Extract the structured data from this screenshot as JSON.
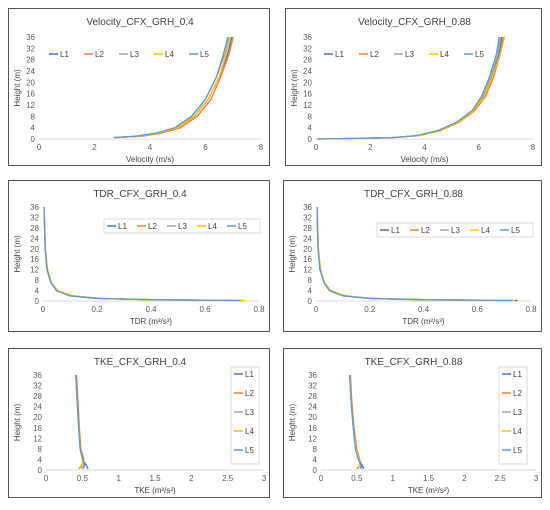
{
  "colors": {
    "L1": "#4472C4",
    "L2": "#ED7D31",
    "L3": "#A5A5A5",
    "L4": "#FFC000",
    "L5": "#5B9BD5"
  },
  "chart_data": [
    {
      "type": "line",
      "title": "Velocity_CFX_GRH_0.4",
      "xlabel": "Velocity (m/s)",
      "ylabel": "Height (m)",
      "xlim": [
        0,
        8
      ],
      "ylim": [
        0,
        36
      ],
      "xticks": [
        "0",
        "2",
        "4",
        "6",
        "8"
      ],
      "yticks": [
        "0",
        "4",
        "8",
        "12",
        "16",
        "20",
        "24",
        "28",
        "32",
        "36"
      ],
      "legend_position": "top-left, horizontal",
      "series": [
        {
          "name": "L1",
          "x": [
            2.7,
            3.6,
            4.3,
            5.0,
            5.6,
            6.1,
            6.5,
            6.8,
            6.95
          ],
          "y": [
            0.5,
            1,
            2,
            4,
            8,
            14,
            22,
            30,
            36
          ]
        },
        {
          "name": "L2",
          "x": [
            2.8,
            3.7,
            4.4,
            5.1,
            5.7,
            6.2,
            6.55,
            6.85,
            7.0
          ],
          "y": [
            0.5,
            1,
            2,
            4,
            8,
            14,
            22,
            30,
            36
          ]
        },
        {
          "name": "L3",
          "x": [
            2.7,
            3.5,
            4.2,
            4.9,
            5.5,
            6.0,
            6.4,
            6.7,
            6.85
          ],
          "y": [
            0.5,
            1,
            2,
            4,
            8,
            14,
            22,
            30,
            36
          ]
        },
        {
          "name": "L4",
          "x": [
            2.8,
            3.6,
            4.3,
            5.0,
            5.6,
            6.1,
            6.5,
            6.75,
            6.9
          ],
          "y": [
            0.5,
            1,
            2,
            4,
            8,
            14,
            22,
            30,
            36
          ]
        },
        {
          "name": "L5",
          "x": [
            2.7,
            3.5,
            4.2,
            4.9,
            5.5,
            6.0,
            6.4,
            6.65,
            6.8
          ],
          "y": [
            0.5,
            1,
            2,
            4,
            8,
            14,
            22,
            30,
            36
          ]
        }
      ]
    },
    {
      "type": "line",
      "title": "Velocity_CFX_GRH_0.88",
      "xlabel": "Velocity (m/s)",
      "ylabel": "Height (m)",
      "xlim": [
        0,
        8
      ],
      "ylim": [
        0,
        36
      ],
      "xticks": [
        "0",
        "2",
        "4",
        "6",
        "8"
      ],
      "yticks": [
        "0",
        "4",
        "8",
        "12",
        "16",
        "20",
        "24",
        "28",
        "32",
        "36"
      ],
      "legend_position": "top-left, horizontal",
      "series": [
        {
          "name": "L1",
          "x": [
            0.05,
            1.5,
            2.8,
            3.8,
            4.6,
            5.3,
            5.8,
            6.2,
            6.5,
            6.75,
            6.85
          ],
          "y": [
            0,
            0.2,
            0.5,
            1.2,
            3,
            6,
            10,
            15,
            22,
            30,
            36
          ]
        },
        {
          "name": "L2",
          "x": [
            0.05,
            1.5,
            2.8,
            3.8,
            4.6,
            5.3,
            5.85,
            6.25,
            6.55,
            6.8,
            6.9
          ],
          "y": [
            0,
            0.2,
            0.5,
            1.2,
            3,
            6,
            10,
            15,
            22,
            30,
            36
          ]
        },
        {
          "name": "L3",
          "x": [
            0.05,
            1.5,
            2.8,
            3.7,
            4.5,
            5.2,
            5.75,
            6.15,
            6.45,
            6.7,
            6.8
          ],
          "y": [
            0,
            0.2,
            0.5,
            1.2,
            3,
            6,
            10,
            15,
            22,
            30,
            36
          ]
        },
        {
          "name": "L4",
          "x": [
            0.05,
            1.5,
            2.8,
            3.8,
            4.6,
            5.3,
            5.8,
            6.2,
            6.5,
            6.8,
            6.95
          ],
          "y": [
            0,
            0.2,
            0.5,
            1.2,
            3,
            6,
            10,
            15,
            22,
            30,
            36
          ]
        },
        {
          "name": "L5",
          "x": [
            0.05,
            1.5,
            2.8,
            3.7,
            4.5,
            5.2,
            5.75,
            6.1,
            6.4,
            6.65,
            6.75
          ],
          "y": [
            0,
            0.2,
            0.5,
            1.2,
            3,
            6,
            10,
            15,
            22,
            30,
            36
          ]
        }
      ]
    },
    {
      "type": "line",
      "title": "TDR_CFX_GRH_0.4",
      "xlabel": "TDR (m²/s³)",
      "ylabel": "Height (m)",
      "xlim": [
        0,
        0.8
      ],
      "ylim": [
        0,
        36
      ],
      "xticks": [
        "0",
        "0.2",
        "0.4",
        "0.6",
        "0.8"
      ],
      "yticks": [
        "0",
        "4",
        "8",
        "12",
        "16",
        "20",
        "24",
        "28",
        "32",
        "36"
      ],
      "legend_position": "inside, horizontal",
      "series": [
        {
          "name": "L1",
          "x": [
            0.74,
            0.4,
            0.2,
            0.1,
            0.05,
            0.03,
            0.015,
            0.008,
            0.005,
            0.004
          ],
          "y": [
            0.2,
            0.5,
            1,
            2,
            4,
            7,
            12,
            20,
            30,
            36
          ]
        },
        {
          "name": "L2",
          "x": [
            0.72,
            0.39,
            0.2,
            0.1,
            0.052,
            0.03,
            0.016,
            0.009,
            0.006,
            0.004
          ],
          "y": [
            0.2,
            0.5,
            1,
            2,
            4,
            7,
            12,
            20,
            30,
            36
          ]
        },
        {
          "name": "L3",
          "x": [
            0.7,
            0.38,
            0.19,
            0.1,
            0.05,
            0.03,
            0.015,
            0.008,
            0.005,
            0.004
          ],
          "y": [
            0.2,
            0.5,
            1,
            2,
            4,
            7,
            12,
            20,
            30,
            36
          ]
        },
        {
          "name": "L4",
          "x": [
            0.75,
            0.42,
            0.22,
            0.11,
            0.055,
            0.032,
            0.017,
            0.009,
            0.006,
            0.004
          ],
          "y": [
            0.2,
            0.5,
            1,
            2,
            4,
            7,
            12,
            20,
            30,
            36
          ]
        },
        {
          "name": "L5",
          "x": [
            0.73,
            0.4,
            0.2,
            0.1,
            0.05,
            0.03,
            0.015,
            0.008,
            0.005,
            0.004
          ],
          "y": [
            0.2,
            0.5,
            1,
            2,
            4,
            7,
            12,
            20,
            30,
            36
          ]
        }
      ]
    },
    {
      "type": "line",
      "title": "TDR_CFX_GRH_0.88",
      "xlabel": "TDR (m²/s³)",
      "ylabel": "Height (m)",
      "xlim": [
        0,
        0.8
      ],
      "ylim": [
        0,
        36
      ],
      "xticks": [
        "0",
        "0.2",
        "0.4",
        "0.6",
        "0.8"
      ],
      "yticks": [
        "0",
        "4",
        "8",
        "12",
        "16",
        "20",
        "24",
        "28",
        "32",
        "36"
      ],
      "legend_position": "inside, horizontal",
      "series": [
        {
          "name": "L1",
          "x": [
            0.75,
            0.4,
            0.2,
            0.1,
            0.05,
            0.03,
            0.015,
            0.008,
            0.005,
            0.004
          ],
          "y": [
            0.2,
            0.5,
            1,
            2,
            4,
            7,
            12,
            20,
            30,
            36
          ]
        },
        {
          "name": "L2",
          "x": [
            0.72,
            0.39,
            0.2,
            0.1,
            0.052,
            0.03,
            0.016,
            0.009,
            0.006,
            0.004
          ],
          "y": [
            0.2,
            0.5,
            1,
            2,
            4,
            7,
            12,
            20,
            30,
            36
          ]
        },
        {
          "name": "L3",
          "x": [
            0.7,
            0.38,
            0.19,
            0.1,
            0.05,
            0.03,
            0.015,
            0.008,
            0.005,
            0.004
          ],
          "y": [
            0.2,
            0.5,
            1,
            2,
            4,
            7,
            12,
            20,
            30,
            36
          ]
        },
        {
          "name": "L4",
          "x": [
            0.74,
            0.41,
            0.21,
            0.11,
            0.055,
            0.032,
            0.017,
            0.009,
            0.006,
            0.004
          ],
          "y": [
            0.2,
            0.5,
            1,
            2,
            4,
            7,
            12,
            20,
            30,
            36
          ]
        },
        {
          "name": "L5",
          "x": [
            0.73,
            0.4,
            0.2,
            0.1,
            0.05,
            0.03,
            0.015,
            0.008,
            0.005,
            0.004
          ],
          "y": [
            0.2,
            0.5,
            1,
            2,
            4,
            7,
            12,
            20,
            30,
            36
          ]
        }
      ]
    },
    {
      "type": "line",
      "title": "TKE_CFX_GRH_0.4",
      "xlabel": "TKE (m²/s²)",
      "ylabel": "Height (m)",
      "xlim": [
        0,
        3
      ],
      "ylim": [
        0,
        36
      ],
      "xticks": [
        "0",
        "0.5",
        "1",
        "1.5",
        "2",
        "2.5",
        "3"
      ],
      "yticks": [
        "0",
        "4",
        "8",
        "12",
        "16",
        "20",
        "24",
        "28",
        "32",
        "36"
      ],
      "legend_position": "right, vertical",
      "series": [
        {
          "name": "L1",
          "x": [
            0.58,
            0.55,
            0.5,
            0.47,
            0.45,
            0.43,
            0.41
          ],
          "y": [
            0.5,
            2,
            4,
            8,
            16,
            26,
            36
          ]
        },
        {
          "name": "L2",
          "x": [
            0.45,
            0.5,
            0.52,
            0.48,
            0.46,
            0.44,
            0.42
          ],
          "y": [
            0.5,
            2,
            4,
            8,
            16,
            26,
            36
          ]
        },
        {
          "name": "L3",
          "x": [
            0.5,
            0.52,
            0.5,
            0.47,
            0.45,
            0.43,
            0.41
          ],
          "y": [
            0.5,
            2,
            4,
            8,
            16,
            26,
            36
          ]
        },
        {
          "name": "L4",
          "x": [
            0.48,
            0.5,
            0.5,
            0.47,
            0.45,
            0.43,
            0.41
          ],
          "y": [
            0.5,
            2,
            4,
            8,
            16,
            26,
            36
          ]
        },
        {
          "name": "L5",
          "x": [
            0.52,
            0.53,
            0.51,
            0.47,
            0.45,
            0.43,
            0.41
          ],
          "y": [
            0.5,
            2,
            4,
            8,
            16,
            26,
            36
          ]
        }
      ]
    },
    {
      "type": "line",
      "title": "TKE_CFX_GRH_0.88",
      "xlabel": "TKE (m²/s²)",
      "ylabel": "Height (m)",
      "xlim": [
        0,
        3
      ],
      "ylim": [
        0,
        36
      ],
      "xticks": [
        "0",
        "0.5",
        "1",
        "1.5",
        "2",
        "2.5",
        "3"
      ],
      "yticks": [
        "0",
        "4",
        "8",
        "12",
        "16",
        "20",
        "24",
        "28",
        "32",
        "36"
      ],
      "legend_position": "right, vertical",
      "series": [
        {
          "name": "L1",
          "x": [
            0.6,
            0.57,
            0.53,
            0.49,
            0.45,
            0.42,
            0.4
          ],
          "y": [
            0.5,
            2,
            4,
            8,
            16,
            26,
            36
          ]
        },
        {
          "name": "L2",
          "x": [
            0.5,
            0.55,
            0.54,
            0.5,
            0.46,
            0.43,
            0.41
          ],
          "y": [
            0.5,
            2,
            4,
            8,
            16,
            26,
            36
          ]
        },
        {
          "name": "L3",
          "x": [
            0.55,
            0.56,
            0.53,
            0.49,
            0.45,
            0.42,
            0.4
          ],
          "y": [
            0.5,
            2,
            4,
            8,
            16,
            26,
            36
          ]
        },
        {
          "name": "L4",
          "x": [
            0.52,
            0.54,
            0.53,
            0.49,
            0.45,
            0.42,
            0.4
          ],
          "y": [
            0.5,
            2,
            4,
            8,
            16,
            26,
            36
          ]
        },
        {
          "name": "L5",
          "x": [
            0.57,
            0.56,
            0.52,
            0.48,
            0.45,
            0.42,
            0.4
          ],
          "y": [
            0.5,
            2,
            4,
            8,
            16,
            26,
            36
          ]
        }
      ]
    }
  ]
}
